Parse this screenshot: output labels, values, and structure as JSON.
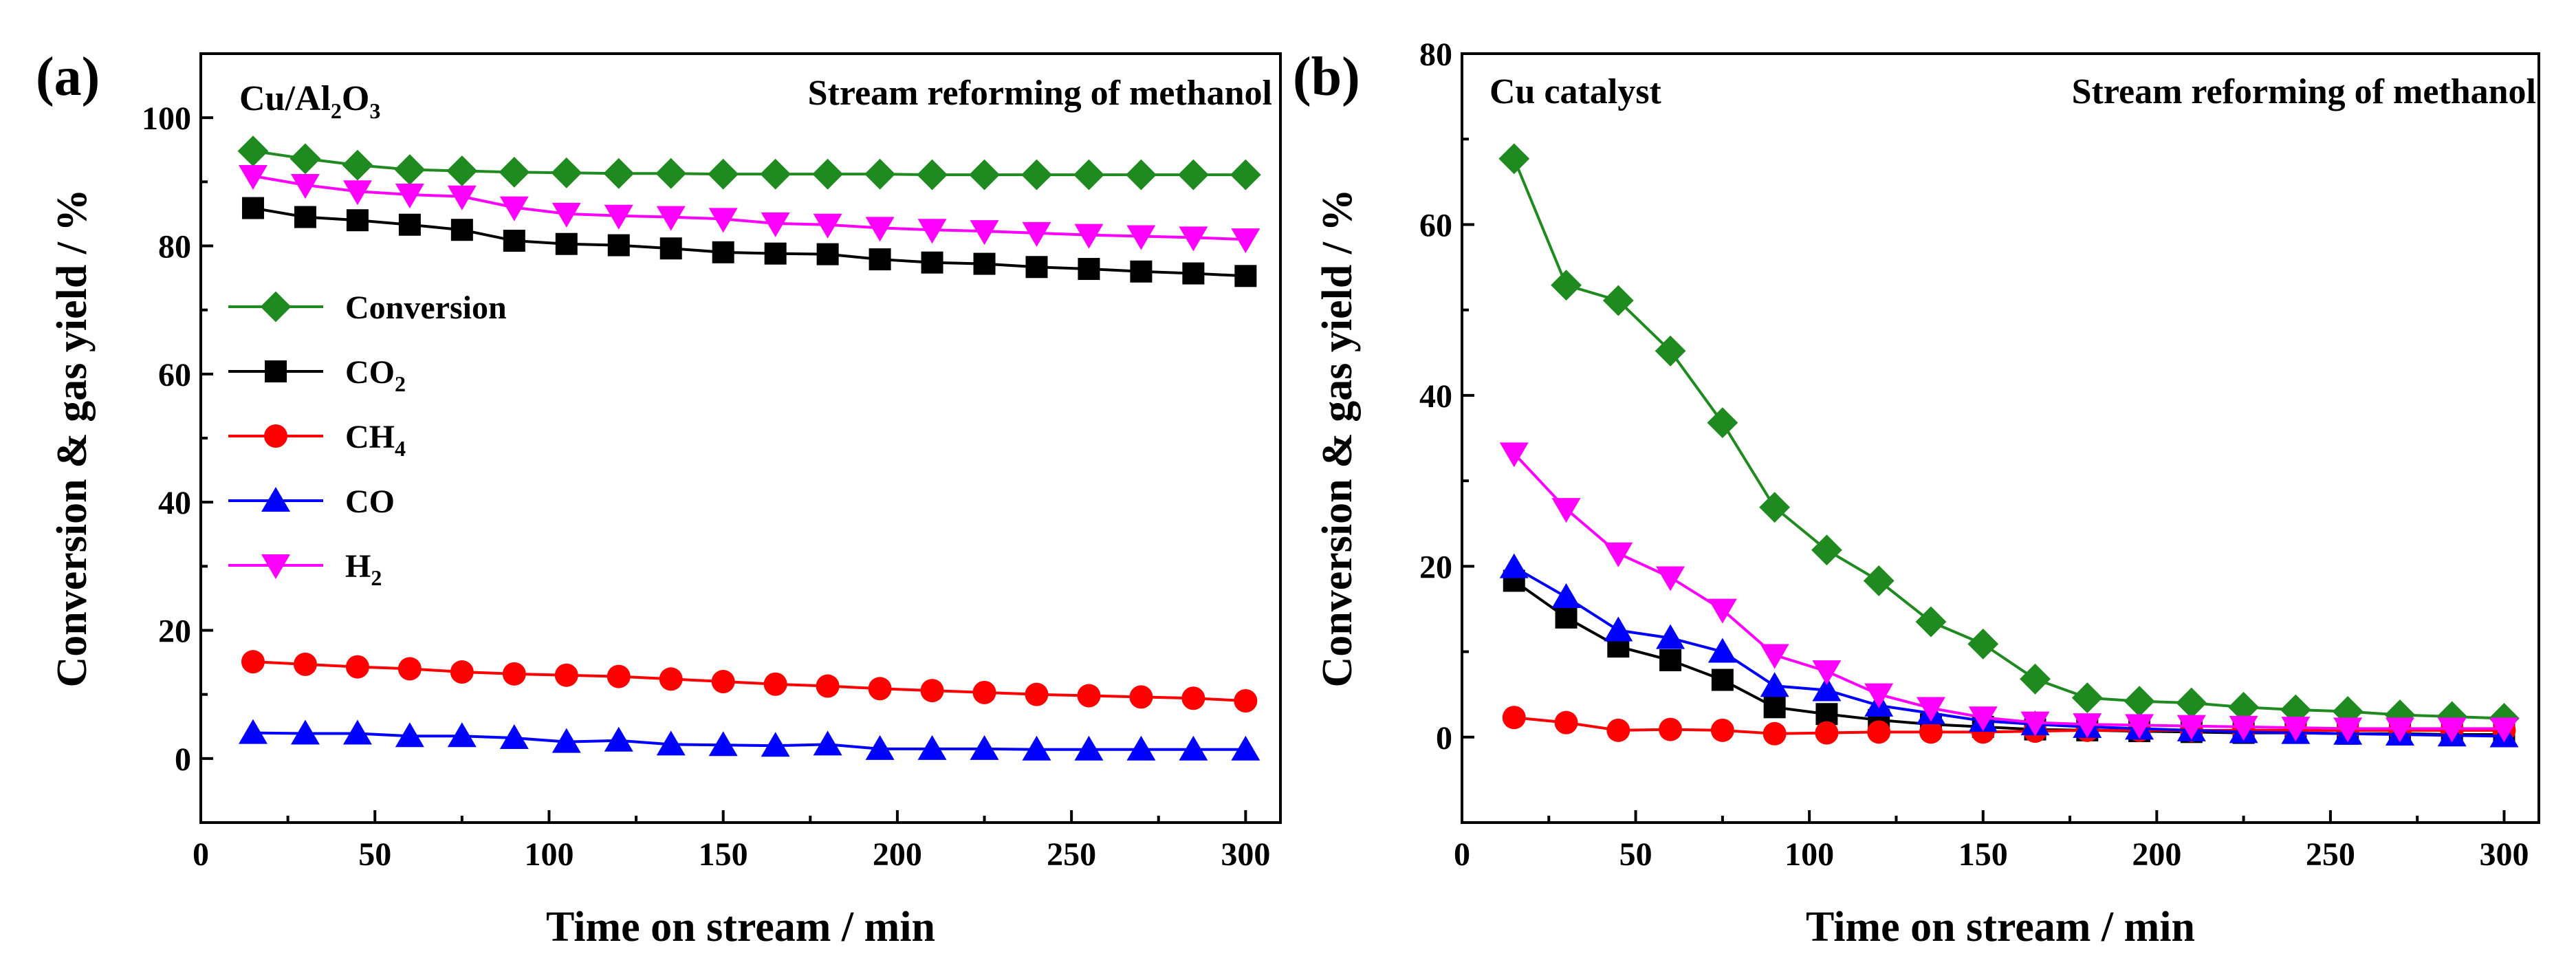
{
  "chart_data": [
    {
      "type": "line",
      "panel_label": "(a)",
      "catalyst": {
        "base": "Cu/Al",
        "s1": "2",
        "mid": "O",
        "s2": "3"
      },
      "title": "Stream reforming of methanol",
      "xlabel": "Time on stream / min",
      "ylabel": "Conversion & gas yield / %",
      "xlim": [
        0,
        310
      ],
      "ylim": [
        -10,
        110
      ],
      "xticks": [
        0,
        50,
        100,
        150,
        200,
        250,
        300
      ],
      "yticks": [
        0,
        20,
        40,
        60,
        80,
        100
      ],
      "legend_position": "center-left",
      "x": [
        15,
        30,
        45,
        60,
        75,
        90,
        105,
        120,
        135,
        150,
        165,
        180,
        195,
        210,
        225,
        240,
        255,
        270,
        285,
        300
      ],
      "series": [
        {
          "name": "Conversion",
          "label": {
            "base": "Conversion",
            "sub": ""
          },
          "color": "#1f8a1f",
          "marker": "diamond",
          "values": [
            94.8,
            93.6,
            92.6,
            91.9,
            91.7,
            91.5,
            91.4,
            91.3,
            91.3,
            91.2,
            91.2,
            91.2,
            91.2,
            91.1,
            91.1,
            91.1,
            91.1,
            91.1,
            91.1,
            91.1
          ]
        },
        {
          "name": "CO2",
          "label": {
            "base": "CO",
            "sub": "2"
          },
          "color": "#000000",
          "marker": "square",
          "values": [
            85.9,
            84.5,
            84.0,
            83.3,
            82.5,
            80.8,
            80.3,
            80.1,
            79.6,
            79.0,
            78.8,
            78.7,
            77.9,
            77.4,
            77.2,
            76.7,
            76.4,
            76.0,
            75.7,
            75.3
          ]
        },
        {
          "name": "CH4",
          "label": {
            "base": "CH",
            "sub": "4"
          },
          "color": "#ff0000",
          "marker": "circle",
          "values": [
            15.1,
            14.7,
            14.3,
            14.0,
            13.5,
            13.2,
            13.0,
            12.8,
            12.4,
            12.0,
            11.6,
            11.3,
            10.9,
            10.6,
            10.3,
            10.0,
            9.8,
            9.6,
            9.4,
            9.0
          ]
        },
        {
          "name": "CO",
          "label": {
            "base": "CO",
            "sub": ""
          },
          "color": "#0000ff",
          "marker": "triangle-up",
          "values": [
            4.0,
            3.9,
            3.9,
            3.5,
            3.5,
            3.2,
            2.6,
            2.8,
            2.2,
            2.1,
            2.0,
            2.2,
            1.5,
            1.5,
            1.5,
            1.4,
            1.4,
            1.4,
            1.4,
            1.4
          ]
        },
        {
          "name": "H2",
          "label": {
            "base": "H",
            "sub": "2"
          },
          "color": "#ff00ff",
          "marker": "triangle-down",
          "values": [
            90.9,
            89.5,
            88.5,
            88.0,
            87.7,
            86.0,
            85.0,
            84.7,
            84.5,
            84.2,
            83.5,
            83.3,
            82.8,
            82.5,
            82.3,
            82.0,
            81.7,
            81.5,
            81.3,
            81.0
          ]
        }
      ]
    },
    {
      "type": "line",
      "panel_label": "(b)",
      "catalyst": {
        "base": "Cu catalyst",
        "s1": "",
        "mid": "",
        "s2": ""
      },
      "title": "Stream reforming of methanol",
      "xlabel": "Time on stream / min",
      "ylabel": "Conversion & gas yield / %",
      "xlim": [
        0,
        310
      ],
      "ylim": [
        -10,
        80
      ],
      "xticks": [
        0,
        50,
        100,
        150,
        200,
        250,
        300
      ],
      "yticks": [
        0,
        20,
        40,
        60,
        80
      ],
      "x": [
        15,
        30,
        45,
        60,
        75,
        90,
        105,
        120,
        135,
        150,
        165,
        180,
        195,
        210,
        225,
        240,
        255,
        270,
        285,
        300
      ],
      "series": [
        {
          "name": "Conversion",
          "color": "#1f8a1f",
          "marker": "diamond",
          "values": [
            67.7,
            52.9,
            51.1,
            45.2,
            36.8,
            26.9,
            21.9,
            18.3,
            13.5,
            10.9,
            6.8,
            4.6,
            4.2,
            4.0,
            3.5,
            3.2,
            3.0,
            2.6,
            2.4,
            2.2
          ]
        },
        {
          "name": "CO2",
          "color": "#000000",
          "marker": "square",
          "values": [
            18.3,
            14.0,
            10.6,
            9.0,
            6.7,
            3.5,
            2.7,
            2.0,
            1.5,
            1.2,
            0.9,
            0.8,
            0.7,
            0.6,
            0.5,
            0.5,
            0.4,
            0.4,
            0.3,
            0.3
          ]
        },
        {
          "name": "CH4",
          "color": "#ff0000",
          "marker": "circle",
          "values": [
            2.3,
            1.7,
            0.8,
            0.9,
            0.8,
            0.4,
            0.5,
            0.6,
            0.6,
            0.6,
            0.7,
            0.8,
            0.8,
            0.8,
            0.8,
            0.8,
            0.8,
            0.8,
            0.8,
            0.8
          ]
        },
        {
          "name": "CO",
          "color": "#0000ff",
          "marker": "triangle-up",
          "values": [
            19.9,
            16.4,
            12.5,
            11.6,
            10.0,
            6.0,
            5.5,
            3.7,
            2.8,
            1.9,
            1.5,
            1.2,
            1.0,
            0.8,
            0.6,
            0.5,
            0.4,
            0.3,
            0.2,
            0.1
          ]
        },
        {
          "name": "H2",
          "color": "#ff00ff",
          "marker": "triangle-down",
          "values": [
            33.2,
            26.7,
            21.5,
            18.7,
            14.9,
            9.6,
            7.7,
            5.0,
            3.4,
            2.3,
            1.7,
            1.5,
            1.4,
            1.3,
            1.2,
            1.1,
            1.0,
            1.0,
            1.0,
            1.0
          ]
        }
      ]
    }
  ]
}
